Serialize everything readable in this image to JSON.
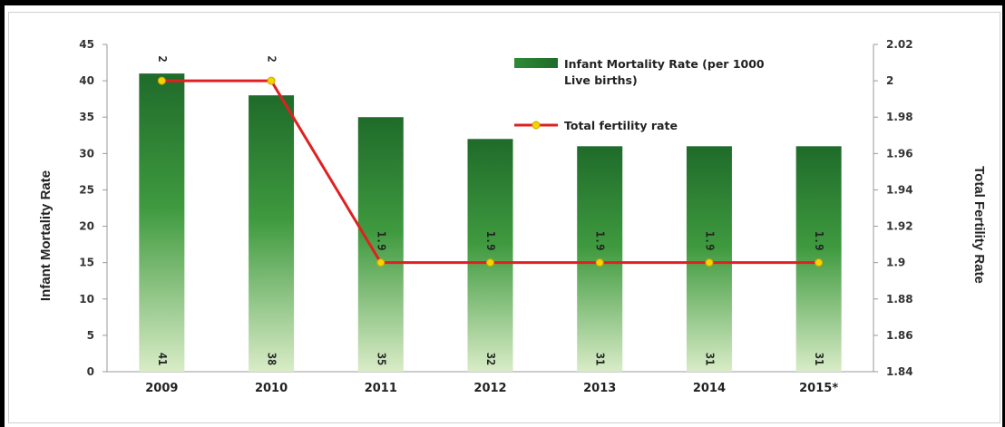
{
  "chart_data": {
    "type": "bar",
    "categories": [
      "2009",
      "2010",
      "2011",
      "2012",
      "2013",
      "2014",
      "2015*"
    ],
    "series": [
      {
        "name": "Infant Mortality Rate (per 1000 Live births)",
        "type": "bar",
        "axis": "left",
        "values": [
          41,
          38,
          35,
          32,
          31,
          31,
          31
        ],
        "color": "#2e7d32"
      },
      {
        "name": "Total fertility rate",
        "type": "line",
        "axis": "right",
        "values": [
          2,
          2,
          1.9,
          1.9,
          1.9,
          1.9,
          1.9
        ],
        "color": "#e02020",
        "marker_color": "#f5d300"
      }
    ],
    "bar_labels": [
      "41",
      "38",
      "35",
      "32",
      "31",
      "31",
      "31"
    ],
    "line_labels": [
      "2",
      "2",
      "1.9",
      "1.9",
      "1.9",
      "1.9",
      "1.9"
    ],
    "ylabel": "Infant Mortality Rate",
    "y2label": "Total Fertility Rate",
    "ylim": [
      0,
      45
    ],
    "y2lim": [
      1.84,
      2.02
    ],
    "yticks": [
      "0",
      "5",
      "10",
      "15",
      "20",
      "25",
      "30",
      "35",
      "40",
      "45"
    ],
    "y2ticks": [
      "1.84",
      "1.86",
      "1.88",
      "1.9",
      "1.92",
      "1.94",
      "1.96",
      "1.98",
      "2",
      "2.02"
    ],
    "legend_items": [
      "Infant Mortality Rate (per 1000",
      "Live births)",
      "Total fertility rate"
    ],
    "legend_position": "top-right",
    "grid": false
  }
}
